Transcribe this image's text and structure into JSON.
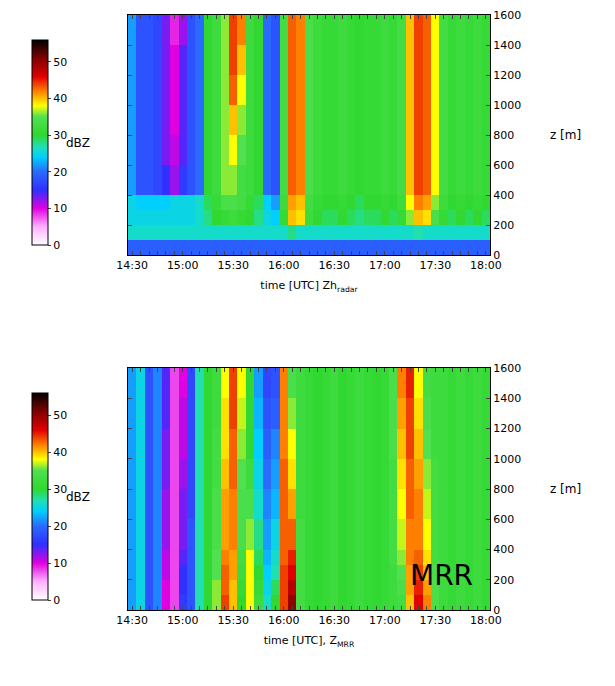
{
  "chart_data": [
    {
      "type": "heatmap",
      "x_label": "time [UTC] Zh",
      "x_label_subscript": "radar",
      "y_label": "z [m]",
      "categories": [
        "14:30",
        null,
        null,
        null,
        null,
        null,
        "15:00",
        null,
        null,
        null,
        null,
        null,
        "15:30",
        null,
        null,
        null,
        null,
        null,
        "16:00",
        null,
        null,
        null,
        null,
        null,
        "16:30",
        null,
        null,
        null,
        null,
        null,
        "17:00",
        null,
        null,
        null,
        null,
        null,
        "17:30",
        null,
        null,
        null,
        null,
        null,
        "18:00"
      ],
      "y_edges": [
        0,
        100,
        200,
        300,
        400,
        600,
        800,
        1000,
        1200,
        1400,
        1600
      ],
      "ylim": [
        0,
        1600
      ],
      "yticks": [
        0,
        200,
        400,
        600,
        800,
        1000,
        1200,
        1400,
        1600
      ],
      "colorbar": {
        "label": "dBZ",
        "range": [
          0,
          56
        ],
        "ticks": [
          0,
          10,
          20,
          30,
          40,
          50
        ]
      },
      "z": [
        [
          19,
          19,
          19,
          19,
          19,
          19,
          19,
          19,
          19,
          19,
          19,
          19,
          19,
          19,
          19,
          19,
          19,
          19,
          19,
          19,
          19,
          19,
          19,
          19,
          19,
          19,
          19,
          19,
          19,
          19,
          19,
          19,
          19,
          19,
          19,
          19,
          19,
          19,
          19,
          19,
          19,
          19,
          19
        ],
        [
          26,
          26,
          26,
          26,
          26,
          26,
          26,
          26,
          26,
          26,
          26,
          26,
          26,
          26,
          26,
          26,
          26,
          26,
          26,
          28,
          26,
          26,
          26,
          26,
          26,
          26,
          26,
          26,
          26,
          26,
          26,
          26,
          26,
          26,
          27,
          26,
          26,
          26,
          26,
          26,
          26,
          26,
          26
        ],
        [
          25,
          25,
          25,
          25,
          25,
          25,
          25,
          25,
          26,
          28,
          30,
          31,
          32,
          31,
          30,
          28,
          25,
          24,
          31,
          40,
          39,
          32,
          30,
          29,
          29,
          30,
          29,
          28,
          29,
          29,
          30,
          29,
          31,
          36,
          40,
          39,
          34,
          31,
          29,
          30,
          29,
          30,
          29
        ],
        [
          25,
          24,
          24,
          24,
          24,
          25,
          25,
          25,
          26,
          29,
          31,
          34,
          34,
          33,
          31,
          29,
          24,
          22,
          32,
          41,
          40,
          33,
          31,
          30,
          30,
          31,
          30,
          29,
          30,
          30,
          31,
          30,
          32,
          38,
          42,
          41,
          36,
          32,
          30,
          31,
          30,
          31,
          30
        ],
        [
          22,
          18,
          18,
          17,
          15,
          12,
          16,
          18,
          20,
          30,
          32,
          36,
          36,
          33,
          32,
          30,
          20,
          18,
          33,
          43,
          42,
          34,
          32,
          31,
          31,
          32,
          31,
          30,
          31,
          31,
          32,
          31,
          33,
          40,
          44,
          43,
          38,
          33,
          31,
          32,
          31,
          32,
          31
        ],
        [
          22,
          18,
          18,
          17,
          13,
          11,
          14,
          18,
          20,
          30,
          32,
          36,
          38,
          35,
          32,
          30,
          20,
          18,
          33,
          43,
          42,
          34,
          32,
          31,
          31,
          32,
          31,
          30,
          31,
          31,
          32,
          31,
          33,
          40,
          44,
          43,
          38,
          33,
          31,
          32,
          31,
          32,
          31
        ],
        [
          22,
          18,
          18,
          17,
          13,
          10,
          14,
          18,
          20,
          30,
          32,
          36,
          40,
          36,
          32,
          30,
          20,
          18,
          33,
          43,
          42,
          34,
          32,
          31,
          31,
          32,
          31,
          30,
          31,
          31,
          32,
          31,
          33,
          40,
          44,
          43,
          38,
          33,
          31,
          32,
          31,
          32,
          31
        ],
        [
          22,
          18,
          18,
          17,
          13,
          10,
          14,
          18,
          20,
          30,
          32,
          36,
          43,
          38,
          32,
          30,
          20,
          18,
          33,
          43,
          42,
          34,
          32,
          31,
          31,
          32,
          31,
          30,
          31,
          31,
          32,
          31,
          33,
          40,
          44,
          43,
          38,
          33,
          31,
          32,
          31,
          32,
          31
        ],
        [
          22,
          18,
          18,
          17,
          13,
          10,
          14,
          18,
          20,
          30,
          32,
          36,
          44,
          40,
          32,
          30,
          20,
          18,
          33,
          43,
          42,
          34,
          32,
          31,
          31,
          32,
          31,
          30,
          31,
          31,
          32,
          31,
          33,
          40,
          44,
          43,
          38,
          33,
          31,
          32,
          31,
          32,
          31
        ],
        [
          22,
          18,
          18,
          17,
          13,
          9,
          12,
          18,
          20,
          30,
          32,
          36,
          44,
          42,
          32,
          30,
          20,
          18,
          33,
          43,
          42,
          34,
          32,
          31,
          31,
          32,
          31,
          30,
          31,
          31,
          32,
          31,
          33,
          40,
          44,
          43,
          38,
          33,
          31,
          32,
          31,
          32,
          31
        ]
      ]
    },
    {
      "type": "heatmap",
      "x_label": "time [UTC], Z",
      "x_label_subscript": "MRR",
      "y_label": "z [m]",
      "annotations": [
        {
          "text": "MRR"
        }
      ],
      "categories": [
        "14:30",
        null,
        null,
        null,
        null,
        null,
        "15:00",
        null,
        null,
        null,
        null,
        null,
        "15:30",
        null,
        null,
        null,
        null,
        null,
        "16:00",
        null,
        null,
        null,
        null,
        null,
        "16:30",
        null,
        null,
        null,
        null,
        null,
        "17:00",
        null,
        null,
        null,
        null,
        null,
        "17:30",
        null,
        null,
        null,
        null,
        null,
        "18:00"
      ],
      "y_edges": [
        0,
        100,
        200,
        300,
        400,
        600,
        800,
        1000,
        1200,
        1400,
        1600
      ],
      "ylim": [
        0,
        1600
      ],
      "yticks": [
        0,
        200,
        400,
        600,
        800,
        1000,
        1200,
        1400,
        1600
      ],
      "colorbar": {
        "label": "dBZ",
        "range": [
          0,
          56
        ],
        "ticks": [
          0,
          10,
          20,
          30,
          40,
          50
        ]
      },
      "z": [
        [
          22,
          25,
          18,
          21,
          10,
          8,
          16,
          18,
          27,
          30,
          36,
          44,
          40,
          30,
          38,
          32,
          26,
          30,
          44,
          50,
          33,
          31,
          30,
          31,
          32,
          30,
          31,
          32,
          31,
          30,
          31,
          32,
          33,
          40,
          46,
          42,
          34,
          32,
          31,
          32,
          31,
          32,
          31
        ],
        [
          22,
          25,
          18,
          21,
          10,
          8,
          15,
          18,
          27,
          30,
          36,
          43,
          40,
          31,
          38,
          31,
          25,
          29,
          44,
          48,
          33,
          31,
          30,
          31,
          32,
          30,
          31,
          32,
          31,
          30,
          31,
          32,
          34,
          41,
          45,
          41,
          34,
          32,
          31,
          32,
          31,
          32,
          31
        ],
        [
          22,
          25,
          18,
          21,
          11,
          8,
          15,
          18,
          27,
          30,
          35,
          43,
          41,
          32,
          38,
          30,
          24,
          27,
          44,
          46,
          33,
          31,
          30,
          31,
          32,
          30,
          31,
          32,
          31,
          30,
          31,
          32,
          35,
          41,
          44,
          40,
          34,
          32,
          31,
          32,
          31,
          32,
          31
        ],
        [
          22,
          25,
          18,
          21,
          11,
          8,
          14,
          18,
          27,
          30,
          35,
          42,
          41,
          33,
          38,
          29,
          23,
          26,
          43,
          45,
          33,
          31,
          30,
          31,
          32,
          30,
          31,
          32,
          31,
          30,
          31,
          33,
          36,
          42,
          43,
          39,
          33,
          32,
          31,
          32,
          31,
          32,
          31
        ],
        [
          22,
          25,
          18,
          21,
          12,
          8,
          13,
          18,
          27,
          30,
          34,
          41,
          42,
          34,
          36,
          28,
          22,
          25,
          43,
          43,
          33,
          31,
          30,
          31,
          32,
          30,
          31,
          32,
          31,
          30,
          31,
          33,
          37,
          42,
          42,
          38,
          33,
          32,
          31,
          32,
          31,
          32,
          31
        ],
        [
          22,
          25,
          18,
          21,
          12,
          8,
          13,
          17,
          27,
          30,
          34,
          41,
          42,
          34,
          34,
          26,
          21,
          23,
          43,
          41,
          32,
          31,
          30,
          31,
          32,
          30,
          31,
          32,
          31,
          30,
          31,
          33,
          38,
          43,
          42,
          37,
          33,
          32,
          31,
          32,
          31,
          32,
          31
        ],
        [
          22,
          25,
          18,
          21,
          13,
          8,
          12,
          17,
          27,
          30,
          33,
          40,
          43,
          35,
          32,
          25,
          20,
          22,
          43,
          39,
          32,
          31,
          30,
          31,
          32,
          30,
          31,
          32,
          31,
          30,
          31,
          33,
          39,
          43,
          41,
          36,
          33,
          32,
          31,
          32,
          31,
          32,
          31
        ],
        [
          22,
          25,
          18,
          21,
          13,
          8,
          11,
          17,
          27,
          30,
          33,
          39,
          43,
          36,
          30,
          24,
          19,
          21,
          42,
          38,
          32,
          31,
          30,
          31,
          32,
          30,
          31,
          32,
          31,
          30,
          31,
          34,
          40,
          44,
          40,
          35,
          32,
          32,
          31,
          32,
          31,
          32,
          31
        ],
        [
          22,
          25,
          18,
          21,
          14,
          8,
          11,
          17,
          27,
          30,
          32,
          39,
          44,
          37,
          30,
          23,
          18,
          19,
          42,
          36,
          32,
          31,
          30,
          31,
          32,
          30,
          31,
          32,
          31,
          30,
          31,
          34,
          41,
          44,
          39,
          34,
          32,
          32,
          31,
          32,
          31,
          32,
          31
        ],
        [
          22,
          25,
          18,
          21,
          14,
          8,
          10,
          17,
          27,
          30,
          32,
          38,
          44,
          38,
          30,
          22,
          17,
          18,
          42,
          34,
          32,
          31,
          30,
          31,
          32,
          30,
          31,
          32,
          31,
          30,
          31,
          34,
          42,
          45,
          38,
          33,
          32,
          32,
          31,
          32,
          31,
          32,
          31
        ]
      ]
    }
  ]
}
